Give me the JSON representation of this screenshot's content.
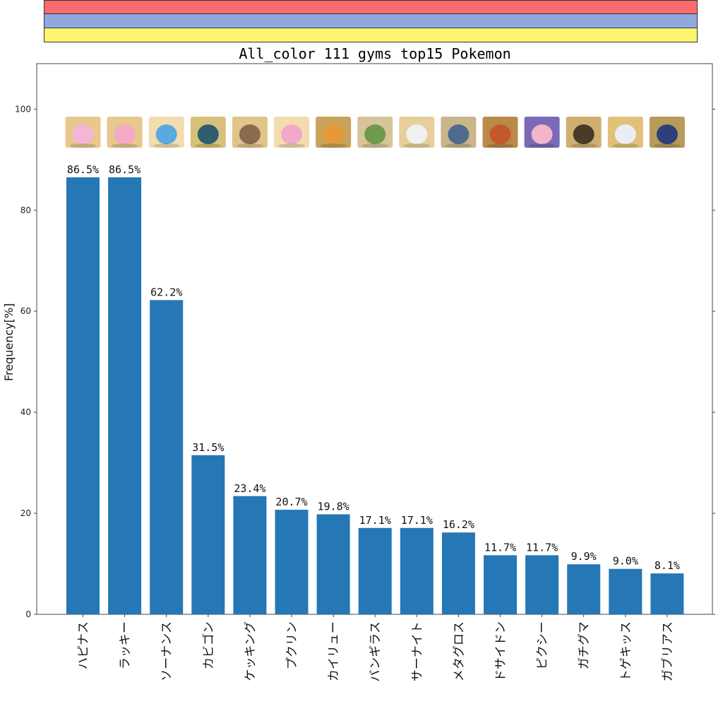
{
  "team_colors": [
    "#fb6b6e",
    "#8fa9e0",
    "#fbf570"
  ],
  "bar_color": "#2677b5",
  "chart_data": {
    "type": "bar",
    "title": "All_color 111 gyms top15 Pokemon",
    "xlabel": "",
    "ylabel": "Frequency[%]",
    "ylim": [
      0,
      109
    ],
    "yticks": [
      0,
      20,
      40,
      60,
      80,
      100
    ],
    "grid": false,
    "categories": [
      "ハピナス",
      "ラッキー",
      "ソーナンス",
      "カビゴン",
      "ケッキング",
      "プクリン",
      "カイリュー",
      "バンギラス",
      "サーナイト",
      "メタグロス",
      "ドサイドン",
      "ピクシー",
      "ガチグマ",
      "トゲキッス",
      "ガブリアス"
    ],
    "values": [
      86.5,
      86.5,
      62.2,
      31.5,
      23.4,
      20.7,
      19.8,
      17.1,
      17.1,
      16.2,
      11.7,
      11.7,
      9.9,
      9.0,
      8.1
    ],
    "data_labels": [
      "86.5%",
      "86.5%",
      "62.2%",
      "31.5%",
      "23.4%",
      "20.7%",
      "19.8%",
      "17.1%",
      "17.1%",
      "16.2%",
      "11.7%",
      "11.7%",
      "9.9%",
      "9.0%",
      "8.1%"
    ],
    "thumbnails": [
      {
        "bg": "#e8c88c",
        "body": "#f3b6d6"
      },
      {
        "bg": "#e8c88c",
        "body": "#f4a9c4"
      },
      {
        "bg": "#f2dcb0",
        "body": "#5aa9e0"
      },
      {
        "bg": "#d9c07a",
        "body": "#2f5f6e"
      },
      {
        "bg": "#e0c48a",
        "body": "#8a6b4e"
      },
      {
        "bg": "#f2dcb0",
        "body": "#f2a8c8"
      },
      {
        "bg": "#c9a35a",
        "body": "#e59a3a"
      },
      {
        "bg": "#d8c49a",
        "body": "#6f9a4a"
      },
      {
        "bg": "#e6cf9a",
        "body": "#f0f0f0"
      },
      {
        "bg": "#c9b68a",
        "body": "#4f6a8c"
      },
      {
        "bg": "#b98a4a",
        "body": "#c45a2a"
      },
      {
        "bg": "#7a6ab8",
        "body": "#f2b6c8"
      },
      {
        "bg": "#cfae70",
        "body": "#4a3a2a"
      },
      {
        "bg": "#e0c07a",
        "body": "#e8eef4"
      },
      {
        "bg": "#b89a5a",
        "body": "#2e3f7a"
      }
    ]
  }
}
